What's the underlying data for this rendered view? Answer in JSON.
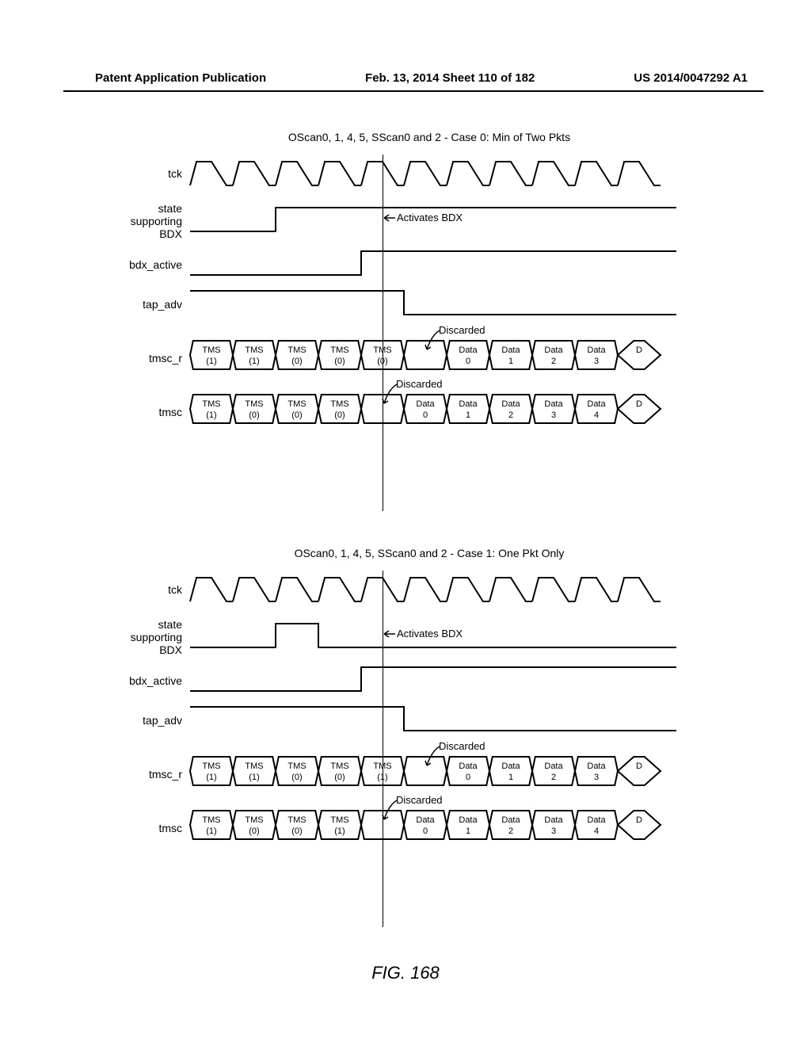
{
  "header": {
    "left": "Patent Application Publication",
    "mid": "Feb. 13, 2014  Sheet 110 of 182",
    "right": "US 2014/0047292 A1"
  },
  "figure_label": "FIG. 168",
  "diagrams": [
    {
      "title": "OScan0, 1, 4, 5, SScan0 and 2 - Case 0: Min of Two Pkts",
      "signals": [
        "tck",
        "state\nsupporting\nBDX",
        "bdx_active",
        "tap_adv",
        "tmsc_r",
        "tmsc"
      ],
      "activates_label": "Activates BDX",
      "discarded_label": "Discarded",
      "tmsc_r": [
        {
          "l1": "TMS",
          "l2": "(1)"
        },
        {
          "l1": "TMS",
          "l2": "(1)"
        },
        {
          "l1": "TMS",
          "l2": "(0)"
        },
        {
          "l1": "TMS",
          "l2": "(0)"
        },
        {
          "l1": "TMS",
          "l2": "(0)"
        },
        {
          "l1": "",
          "l2": ""
        },
        {
          "l1": "Data",
          "l2": "0"
        },
        {
          "l1": "Data",
          "l2": "1"
        },
        {
          "l1": "Data",
          "l2": "2"
        },
        {
          "l1": "Data",
          "l2": "3"
        },
        {
          "l1": "D",
          "l2": ""
        }
      ],
      "tmsc": [
        {
          "l1": "TMS",
          "l2": "(1)"
        },
        {
          "l1": "TMS",
          "l2": "(0)"
        },
        {
          "l1": "TMS",
          "l2": "(0)"
        },
        {
          "l1": "TMS",
          "l2": "(0)"
        },
        {
          "l1": "",
          "l2": ""
        },
        {
          "l1": "Data",
          "l2": "0"
        },
        {
          "l1": "Data",
          "l2": "1"
        },
        {
          "l1": "Data",
          "l2": "2"
        },
        {
          "l1": "Data",
          "l2": "3"
        },
        {
          "l1": "Data",
          "l2": "4"
        },
        {
          "l1": "D",
          "l2": ""
        }
      ]
    },
    {
      "title": "OScan0, 1, 4, 5, SScan0 and 2 - Case 1: One Pkt Only",
      "signals": [
        "tck",
        "state\nsupporting\nBDX",
        "bdx_active",
        "tap_adv",
        "tmsc_r",
        "tmsc"
      ],
      "activates_label": "Activates BDX",
      "discarded_label": "Discarded",
      "tmsc_r": [
        {
          "l1": "TMS",
          "l2": "(1)"
        },
        {
          "l1": "TMS",
          "l2": "(1)"
        },
        {
          "l1": "TMS",
          "l2": "(0)"
        },
        {
          "l1": "TMS",
          "l2": "(0)"
        },
        {
          "l1": "TMS",
          "l2": "(1)"
        },
        {
          "l1": "",
          "l2": ""
        },
        {
          "l1": "Data",
          "l2": "0"
        },
        {
          "l1": "Data",
          "l2": "1"
        },
        {
          "l1": "Data",
          "l2": "2"
        },
        {
          "l1": "Data",
          "l2": "3"
        },
        {
          "l1": "D",
          "l2": ""
        }
      ],
      "tmsc": [
        {
          "l1": "TMS",
          "l2": "(1)"
        },
        {
          "l1": "TMS",
          "l2": "(0)"
        },
        {
          "l1": "TMS",
          "l2": "(0)"
        },
        {
          "l1": "TMS",
          "l2": "(1)"
        },
        {
          "l1": "",
          "l2": ""
        },
        {
          "l1": "Data",
          "l2": "0"
        },
        {
          "l1": "Data",
          "l2": "1"
        },
        {
          "l1": "Data",
          "l2": "2"
        },
        {
          "l1": "Data",
          "l2": "3"
        },
        {
          "l1": "Data",
          "l2": "4"
        },
        {
          "l1": "D",
          "l2": ""
        }
      ]
    }
  ],
  "style": {
    "clock_cycles": 11,
    "cycle_width": 54,
    "wave_height": 30,
    "line_color": "#000000",
    "line_width": 2,
    "background": "#ffffff",
    "font_size_label": 14,
    "font_size_packet": 11,
    "font_size_title": 14
  }
}
